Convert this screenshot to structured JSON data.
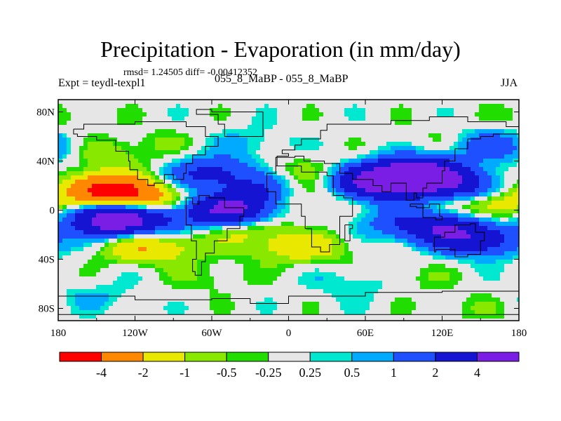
{
  "title": "Precipitation - Evaporation (in mm/day)",
  "stats_line": "rmsd= 1.24505 diff= -0.00412352",
  "left_label": "Expt = teydl-texpl1",
  "center_label": "055_8_MaBP - 055_8_MaBP",
  "right_label": "JJA",
  "chart_data": {
    "type": "heatmap",
    "x_axis": {
      "range": [
        -180,
        180
      ],
      "ticks": [
        -180,
        -120,
        -60,
        0,
        60,
        120,
        180
      ],
      "tick_labels": [
        "180",
        "120W",
        "60W",
        "0",
        "60E",
        "120E",
        "180"
      ]
    },
    "y_axis": {
      "range": [
        -90,
        90
      ],
      "ticks": [
        80,
        40,
        0,
        -40,
        -80
      ],
      "tick_labels": [
        "80N",
        "40N",
        "0",
        "40S",
        "80S"
      ]
    },
    "colorbar": {
      "levels": [
        -4,
        -2,
        -1,
        -0.5,
        -0.25,
        0.25,
        0.5,
        1,
        2,
        4
      ],
      "level_labels": [
        "-4",
        "-2",
        "-1",
        "-0.5",
        "-0.25",
        "0.25",
        "0.5",
        "1",
        "2",
        "4"
      ],
      "colors": [
        "#ff0000",
        "#ff8800",
        "#e8e800",
        "#88e800",
        "#22dd00",
        "#e6e6e6",
        "#00e8d0",
        "#00aaff",
        "#1e50ff",
        "#1414d2",
        "#7a1ee6"
      ]
    },
    "features": [
      {
        "lon": -145,
        "lat": 16,
        "value": -5
      },
      {
        "lon": -115,
        "lat": 10,
        "value": -2.5
      },
      {
        "lon": -135,
        "lat": -9,
        "value": 5
      },
      {
        "lon": -95,
        "lat": -7,
        "value": 1.5
      },
      {
        "lon": -150,
        "lat": 0,
        "value": 1.8
      },
      {
        "lon": -120,
        "lat": -30,
        "value": -1.5
      },
      {
        "lon": -90,
        "lat": -30,
        "value": -1
      },
      {
        "lon": -60,
        "lat": 30,
        "value": 2.5
      },
      {
        "lon": -20,
        "lat": 15,
        "value": 2
      },
      {
        "lon": -45,
        "lat": 0,
        "value": 4.5
      },
      {
        "lon": -35,
        "lat": -15,
        "value": -1.2
      },
      {
        "lon": -10,
        "lat": -30,
        "value": -0.8
      },
      {
        "lon": 5,
        "lat": 10,
        "value": -1
      },
      {
        "lon": 15,
        "lat": 30,
        "value": -0.8
      },
      {
        "lon": 60,
        "lat": 25,
        "value": 2.5
      },
      {
        "lon": 80,
        "lat": 20,
        "value": 3
      },
      {
        "lon": 95,
        "lat": 30,
        "value": 2
      },
      {
        "lon": 100,
        "lat": 30,
        "value": 3
      },
      {
        "lon": 120,
        "lat": 25,
        "value": 2.5
      },
      {
        "lon": 150,
        "lat": 15,
        "value": 2
      },
      {
        "lon": 160,
        "lat": 5,
        "value": -2.5
      },
      {
        "lon": 120,
        "lat": -15,
        "value": 3.5
      },
      {
        "lon": 150,
        "lat": -25,
        "value": 2.8
      },
      {
        "lon": 80,
        "lat": -10,
        "value": 1.2
      },
      {
        "lon": 20,
        "lat": -30,
        "value": -1.2
      },
      {
        "lon": -140,
        "lat": 45,
        "value": -0.8
      },
      {
        "lon": 150,
        "lat": 55,
        "value": 1
      },
      {
        "lon": 170,
        "lat": 50,
        "value": 0.8
      },
      {
        "lon": -30,
        "lat": 55,
        "value": 0.6
      },
      {
        "lon": 50,
        "lat": -60,
        "value": 0.6
      },
      {
        "lon": -150,
        "lat": -70,
        "value": 0.5
      },
      {
        "lon": -100,
        "lat": 55,
        "value": -0.4
      },
      {
        "lon": 120,
        "lat": 60,
        "value": -0.4
      },
      {
        "lon": -60,
        "lat": -55,
        "value": -0.5
      },
      {
        "lon": 100,
        "lat": -55,
        "value": -0.4
      },
      {
        "lon": -170,
        "lat": 75,
        "value": -0.4
      },
      {
        "lon": 140,
        "lat": -80,
        "value": -0.4
      }
    ]
  }
}
